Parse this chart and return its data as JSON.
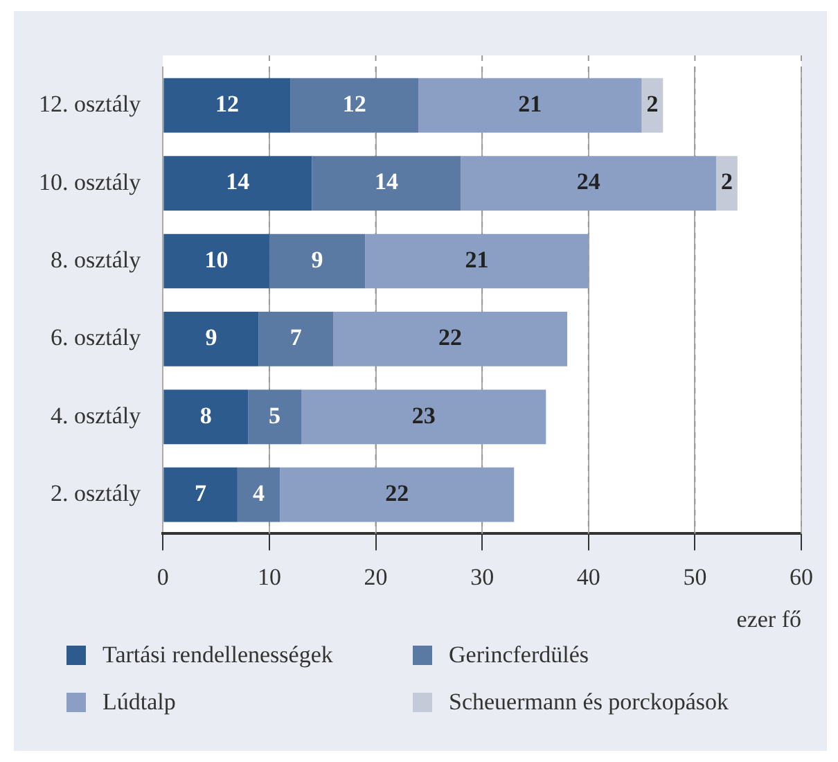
{
  "chart_data": {
    "type": "bar",
    "orientation": "horizontal",
    "stacked": true,
    "xlabel": "ezer fő",
    "categories": [
      "12. osztály",
      "10. osztály",
      "8. osztály",
      "6. osztály",
      "4. osztály",
      "2. osztály"
    ],
    "series": [
      {
        "name": "Tartási rendellenességek",
        "color": "#2d5b8e",
        "values": [
          12,
          14,
          10,
          9,
          8,
          7
        ]
      },
      {
        "name": "Gerincferdülés",
        "color": "#5a79a3",
        "values": [
          12,
          14,
          9,
          7,
          5,
          4
        ]
      },
      {
        "name": "Lúdtalp",
        "color": "#8b9fc4",
        "values": [
          21,
          24,
          21,
          22,
          23,
          22
        ]
      },
      {
        "name": "Scheuermann és porckopások",
        "color": "#c5cad8",
        "values": [
          2,
          2,
          null,
          null,
          null,
          null
        ]
      }
    ],
    "xlim": [
      0,
      60
    ],
    "xticks": [
      0,
      10,
      20,
      30,
      40,
      50,
      60
    ],
    "grid": "x",
    "legend": "bottom",
    "data_labels": true
  }
}
